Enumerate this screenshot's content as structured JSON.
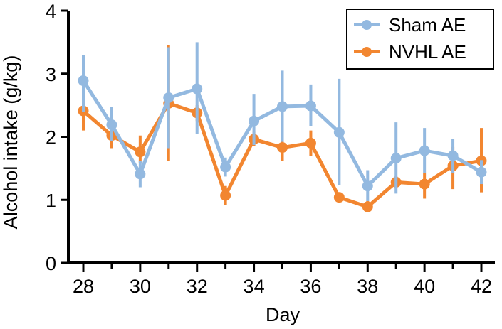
{
  "chart_data": {
    "type": "line",
    "title": "",
    "xlabel": "Day",
    "ylabel": "Alcohol intake (g/kg)",
    "xlim": [
      27.5,
      42.5
    ],
    "ylim": [
      0,
      4
    ],
    "x_ticks": [
      28,
      30,
      32,
      34,
      36,
      38,
      40,
      42
    ],
    "y_ticks": [
      0,
      1,
      2,
      3,
      4
    ],
    "legend_position": "top-right",
    "grid": false,
    "series": [
      {
        "name": "Sham AE",
        "color": "#93b9e0",
        "x": [
          28,
          29,
          30,
          31,
          32,
          33,
          34,
          35,
          36,
          37,
          38,
          39,
          40,
          41,
          42
        ],
        "values": [
          2.89,
          2.19,
          1.41,
          2.62,
          2.76,
          1.52,
          2.25,
          2.48,
          2.49,
          2.07,
          1.22,
          1.66,
          1.78,
          1.7,
          1.44
        ],
        "err_low": [
          2.4,
          1.93,
          1.2,
          1.82,
          2.04,
          1.37,
          1.87,
          1.92,
          2.17,
          1.24,
          0.98,
          1.1,
          1.43,
          1.42,
          1.25
        ],
        "err_high": [
          3.3,
          2.47,
          1.62,
          3.42,
          3.5,
          1.67,
          2.68,
          3.05,
          2.83,
          2.92,
          1.47,
          2.23,
          2.14,
          1.97,
          1.63
        ]
      },
      {
        "name": "NVHL AE",
        "color": "#f28630",
        "x": [
          28,
          29,
          30,
          31,
          32,
          33,
          34,
          35,
          36,
          37,
          38,
          39,
          40,
          41,
          42
        ],
        "values": [
          2.41,
          2.02,
          1.76,
          2.53,
          2.38,
          1.07,
          1.96,
          1.83,
          1.9,
          1.04,
          0.89,
          1.28,
          1.25,
          1.54,
          1.62
        ],
        "err_low": [
          2.1,
          1.82,
          1.58,
          1.62,
          2.25,
          0.92,
          1.85,
          1.62,
          1.7,
          0.98,
          0.8,
          1.18,
          1.02,
          1.17,
          1.12
        ],
        "err_high": [
          2.72,
          2.2,
          2.02,
          3.45,
          2.5,
          1.22,
          2.08,
          2.02,
          2.1,
          1.1,
          0.98,
          1.38,
          1.42,
          1.84,
          2.14
        ]
      }
    ]
  }
}
